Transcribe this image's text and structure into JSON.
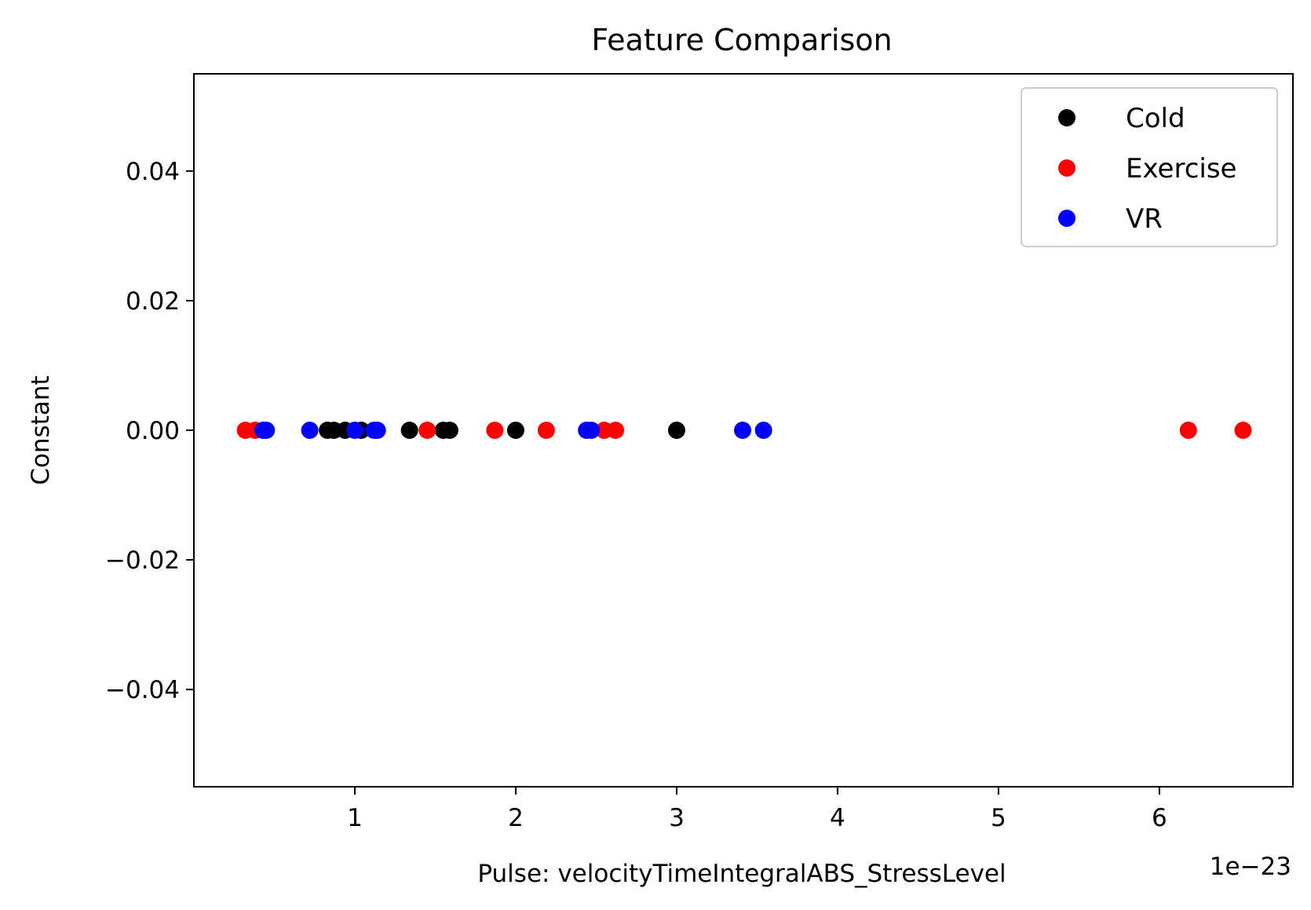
{
  "chart_data": {
    "type": "scatter",
    "title": "Feature Comparison",
    "xlabel": "Pulse: velocityTimeIntegralABS_StressLevel",
    "ylabel": "Constant",
    "x_offset_label": "1e−23",
    "x_multiplier": 1e-23,
    "xlim": [
      0.0,
      6.83
    ],
    "ylim": [
      -0.055,
      0.055
    ],
    "x_ticks": [
      1,
      2,
      3,
      4,
      5,
      6
    ],
    "x_tick_labels": [
      "1",
      "2",
      "3",
      "4",
      "5",
      "6"
    ],
    "y_ticks": [
      0.04,
      0.02,
      0.0,
      -0.02,
      -0.04
    ],
    "y_tick_labels": [
      "0.04",
      "0.02",
      "0.00",
      "−0.02",
      "−0.04"
    ],
    "grid": false,
    "legend_position": "top-right",
    "series": [
      {
        "name": "Cold",
        "color": "#000000",
        "x": [
          0.83,
          0.87,
          0.94,
          1.04,
          1.34,
          1.55,
          1.59,
          2.0,
          3.0
        ],
        "y": [
          0,
          0,
          0,
          0,
          0,
          0,
          0,
          0,
          0
        ]
      },
      {
        "name": "Exercise",
        "color": "#ff0000",
        "x": [
          0.32,
          0.38,
          1.45,
          1.87,
          2.19,
          2.55,
          2.62,
          6.18,
          6.52
        ],
        "y": [
          0,
          0,
          0,
          0,
          0,
          0,
          0,
          0,
          0
        ]
      },
      {
        "name": "VR",
        "color": "#0000ff",
        "x": [
          0.43,
          0.45,
          0.72,
          1.0,
          1.12,
          1.14,
          2.44,
          2.47,
          3.41,
          3.54
        ],
        "y": [
          0,
          0,
          0,
          0,
          0,
          0,
          0,
          0,
          0,
          0
        ]
      }
    ]
  }
}
